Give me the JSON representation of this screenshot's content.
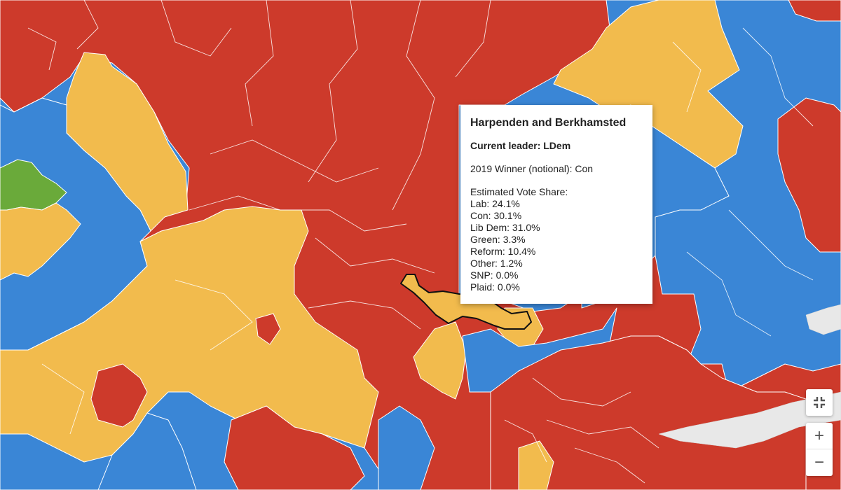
{
  "tooltip": {
    "constituency": "Harpenden and Berkhamsted",
    "current_leader": "Current leader: LDem",
    "winner_2019": "2019 Winner (notional): Con",
    "vote_share_heading": "Estimated Vote Share:",
    "vote_share": [
      "Lab: 24.1%",
      "Con: 30.1%",
      "Lib Dem: 31.0%",
      "Green: 3.3%",
      "Reform: 10.4%",
      "Other: 1.2%",
      "SNP: 0.0%",
      "Plaid: 0.0%"
    ]
  },
  "controls": {
    "fullscreen_icon": "fullscreen-exit-icon",
    "zoom_in_label": "+",
    "zoom_out_label": "−"
  },
  "party_colors": {
    "Lab": "#cd3a2b",
    "Con": "#3a86d6",
    "LDem": "#f2bb4d",
    "Green": "#6aaa3a"
  }
}
